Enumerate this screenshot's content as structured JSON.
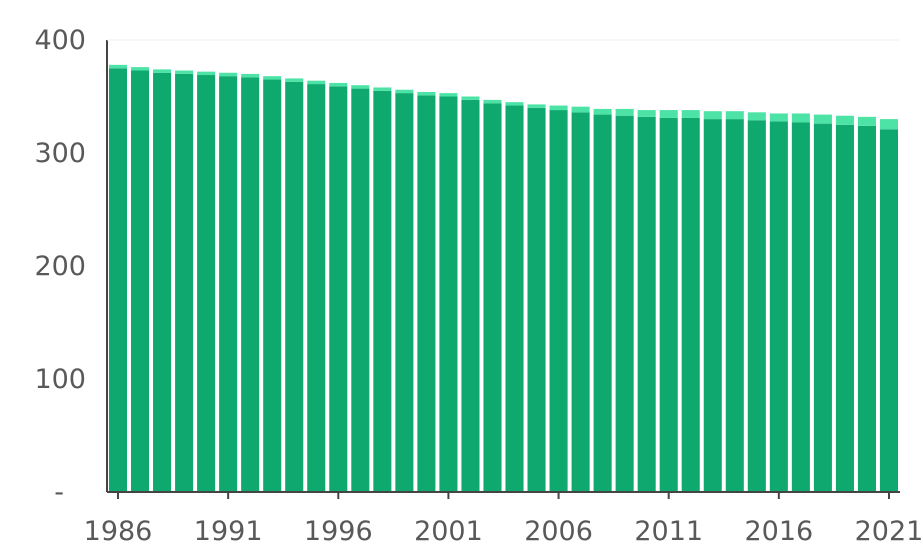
{
  "chart_data": {
    "type": "bar",
    "stacked": true,
    "title": "",
    "xlabel": "",
    "ylabel": "",
    "ylim": [
      0,
      400
    ],
    "y_ticks": [
      {
        "value": 0,
        "label": "-"
      },
      {
        "value": 100,
        "label": "100"
      },
      {
        "value": 200,
        "label": "200"
      },
      {
        "value": 300,
        "label": "300"
      },
      {
        "value": 400,
        "label": "400"
      }
    ],
    "x_tick_labels": [
      "1986",
      "1991",
      "1996",
      "2001",
      "2006",
      "2011",
      "2016",
      "2021"
    ],
    "grid": false,
    "legend": "none",
    "categories": [
      "1986",
      "1987",
      "1988",
      "1989",
      "1990",
      "1991",
      "1992",
      "1993",
      "1994",
      "1995",
      "1996",
      "1997",
      "1998",
      "1999",
      "2000",
      "2001",
      "2002",
      "2003",
      "2004",
      "2005",
      "2006",
      "2007",
      "2008",
      "2009",
      "2010",
      "2011",
      "2012",
      "2013",
      "2014",
      "2015",
      "2016",
      "2017",
      "2018",
      "2019",
      "2020",
      "2021"
    ],
    "series": [
      {
        "color": "#0fa86e",
        "values": [
          375,
          373,
          371,
          370,
          369,
          368,
          367,
          365,
          363,
          361,
          359,
          357,
          355,
          353,
          351,
          350,
          347,
          344,
          342,
          340,
          338,
          336,
          334,
          333,
          332,
          331,
          331,
          330,
          330,
          329,
          328,
          327,
          326,
          325,
          324,
          321
        ]
      },
      {
        "color": "#4ee3a6",
        "values": [
          3,
          3,
          3,
          3,
          3,
          3,
          3,
          3,
          3,
          3,
          3,
          3,
          3,
          3,
          3,
          3,
          3,
          3,
          3,
          3,
          4,
          5,
          5,
          6,
          6,
          7,
          7,
          7,
          7,
          7,
          7,
          8,
          8,
          8,
          8,
          9
        ]
      }
    ]
  }
}
